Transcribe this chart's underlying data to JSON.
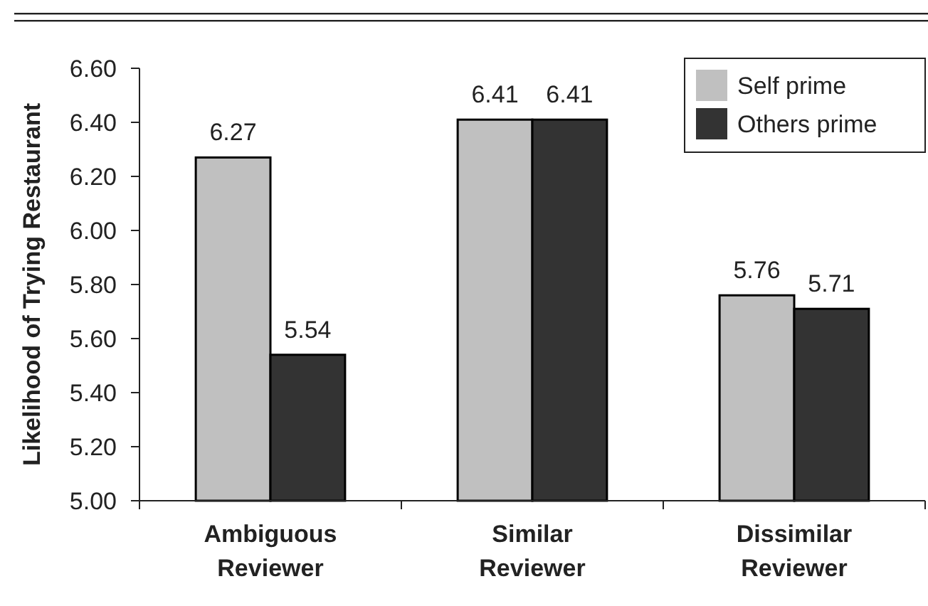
{
  "chart_data": {
    "type": "bar",
    "ylabel": "Likelihood of Trying Restaurant",
    "categories": [
      "Ambiguous Reviewer",
      "Similar Reviewer",
      "Dissimilar Reviewer"
    ],
    "series": [
      {
        "name": "Self prime",
        "color": "#c0c0c0",
        "values": [
          6.27,
          6.41,
          5.76
        ]
      },
      {
        "name": "Others prime",
        "color": "#333333",
        "values": [
          5.54,
          6.41,
          5.71
        ]
      }
    ],
    "ylim": [
      5.0,
      6.6
    ],
    "yticks": [
      {
        "value": 5.0,
        "label": "5.00"
      },
      {
        "value": 5.2,
        "label": "5.20"
      },
      {
        "value": 5.4,
        "label": "5.40"
      },
      {
        "value": 5.6,
        "label": "5.60"
      },
      {
        "value": 5.8,
        "label": "5.80"
      },
      {
        "value": 6.0,
        "label": "6.00"
      },
      {
        "value": 6.2,
        "label": "6.20"
      },
      {
        "value": 6.4,
        "label": "6.40"
      },
      {
        "value": 6.6,
        "label": "6.60"
      }
    ],
    "data_labels": true,
    "legend": "top right",
    "grid": false
  }
}
